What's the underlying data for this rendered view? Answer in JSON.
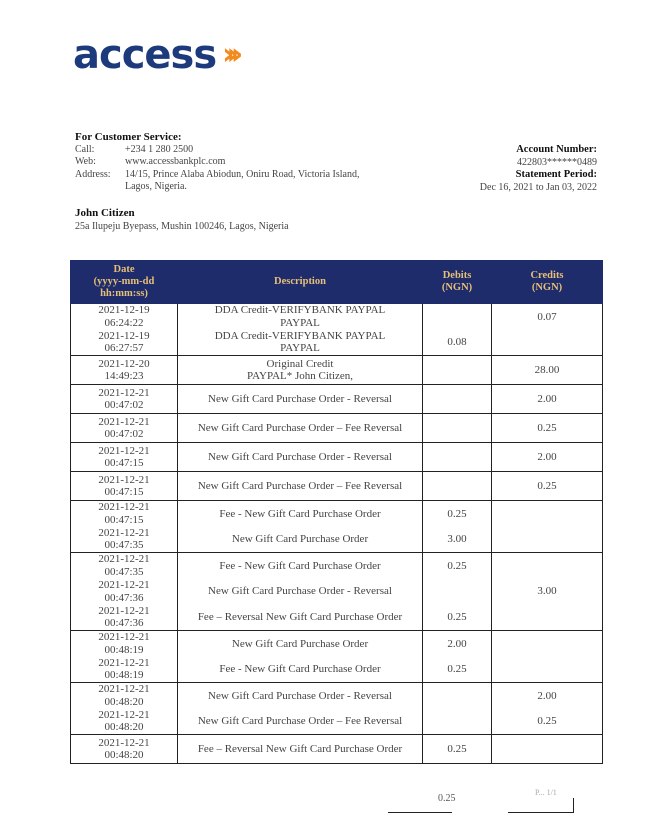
{
  "brand": {
    "name": "access",
    "colors": {
      "primary": "#1d3a7c",
      "accent": "#f28a1d",
      "header_bg": "#1f2c6b",
      "header_text": "#e7bf78"
    }
  },
  "customer_service": {
    "title": "For Customer Service:",
    "call_label": "Call:",
    "call": "+234 1 280 2500",
    "web_label": "Web:",
    "web": "www.accessbankplc.com",
    "address_label": "Address:",
    "address_line1": "14/15, Prince Alaba Abiodun, Oniru Road, Victoria Island,",
    "address_line2": "Lagos, Nigeria."
  },
  "account": {
    "number_label": "Account Number:",
    "number": "422803******0489",
    "period_label": "Statement Period:",
    "period": "Dec 16, 2021 to Jan 03, 2022"
  },
  "customer": {
    "name": "John Citizen",
    "address": "25a Ilupeju Byepass, Mushin 100246, Lagos, Nigeria"
  },
  "table": {
    "headers": {
      "date": [
        "Date",
        "(yyyy-mm-dd",
        "hh:mm:ss)"
      ],
      "description": "Description",
      "debits": [
        "Debits",
        "(NGN)"
      ],
      "credits": [
        "Credits",
        "(NGN)"
      ]
    },
    "groups": [
      {
        "rows": [
          {
            "date": "2021-12-19",
            "time": "06:24:22",
            "desc": [
              "DDA Credit-VERIFYBANK PAYPAL",
              "PAYPAL"
            ],
            "debit": "",
            "credit": "0.07"
          },
          {
            "date": "2021-12-19",
            "time": "06:27:57",
            "desc": [
              "DDA Credit-VERIFYBANK PAYPAL",
              "PAYPAL"
            ],
            "debit": "0.08",
            "credit": ""
          }
        ]
      },
      {
        "rows": [
          {
            "date": "2021-12-20",
            "time": "14:49:23",
            "desc": [
              "Original Credit",
              "PAYPAL* John Citizen,"
            ],
            "debit": "",
            "credit": "28.00"
          }
        ]
      },
      {
        "rows": [
          {
            "date": "2021-12-21",
            "time": "00:47:02",
            "desc": [
              "New Gift Card Purchase Order - Reversal"
            ],
            "debit": "",
            "credit": "2.00"
          }
        ]
      },
      {
        "rows": [
          {
            "date": "2021-12-21",
            "time": "00:47:02",
            "desc": [
              "New Gift Card Purchase Order – Fee Reversal"
            ],
            "debit": "",
            "credit": "0.25"
          }
        ]
      },
      {
        "rows": [
          {
            "date": "2021-12-21",
            "time": "00:47:15",
            "desc": [
              "New Gift Card Purchase Order - Reversal"
            ],
            "debit": "",
            "credit": "2.00"
          }
        ]
      },
      {
        "rows": [
          {
            "date": "2021-12-21",
            "time": "00:47:15",
            "desc": [
              "New Gift Card Purchase Order – Fee Reversal"
            ],
            "debit": "",
            "credit": "0.25"
          }
        ]
      },
      {
        "rows": [
          {
            "date": "2021-12-21",
            "time": "00:47:15",
            "desc": [
              "Fee - New Gift Card Purchase Order"
            ],
            "debit": "0.25",
            "credit": ""
          },
          {
            "date": "2021-12-21",
            "time": "00:47:35",
            "desc": [
              "New Gift Card Purchase Order"
            ],
            "debit": "3.00",
            "credit": ""
          }
        ]
      },
      {
        "merged_credit": "3.00",
        "rows": [
          {
            "date": "2021-12-21",
            "time": "00:47:35",
            "desc": [
              "Fee - New Gift Card Purchase Order"
            ],
            "debit": "0.25"
          },
          {
            "date": "2021-12-21",
            "time": "00:47:36",
            "desc": [
              "New Gift Card Purchase Order - Reversal"
            ],
            "debit": ""
          },
          {
            "date": "2021-12-21",
            "time": "00:47:36",
            "desc": [
              "Fee – Reversal New Gift Card Purchase Order"
            ],
            "debit": "0.25"
          }
        ]
      },
      {
        "rows": [
          {
            "date": "2021-12-21",
            "time": "00:48:19",
            "desc": [
              "New Gift Card Purchase Order"
            ],
            "debit": "2.00",
            "credit": ""
          },
          {
            "date": "2021-12-21",
            "time": "00:48:19",
            "desc": [
              "Fee - New Gift Card Purchase Order"
            ],
            "debit": "0.25",
            "credit": ""
          }
        ]
      },
      {
        "rows": [
          {
            "date": "2021-12-21",
            "time": "00:48:20",
            "desc": [
              "New Gift Card Purchase Order - Reversal"
            ],
            "debit": "",
            "credit": "2.00"
          },
          {
            "date": "2021-12-21",
            "time": "00:48:20",
            "desc": [
              "New Gift Card Purchase Order – Fee Reversal"
            ],
            "debit": "",
            "credit": "0.25"
          }
        ]
      },
      {
        "rows": [
          {
            "date": "2021-12-21",
            "time": "00:48:20",
            "desc": [
              "Fee – Reversal New Gift Card Purchase Order"
            ],
            "debit": "0.25",
            "credit": ""
          }
        ]
      }
    ]
  },
  "footer": {
    "total": "0.25",
    "page": "P... 1/1"
  }
}
